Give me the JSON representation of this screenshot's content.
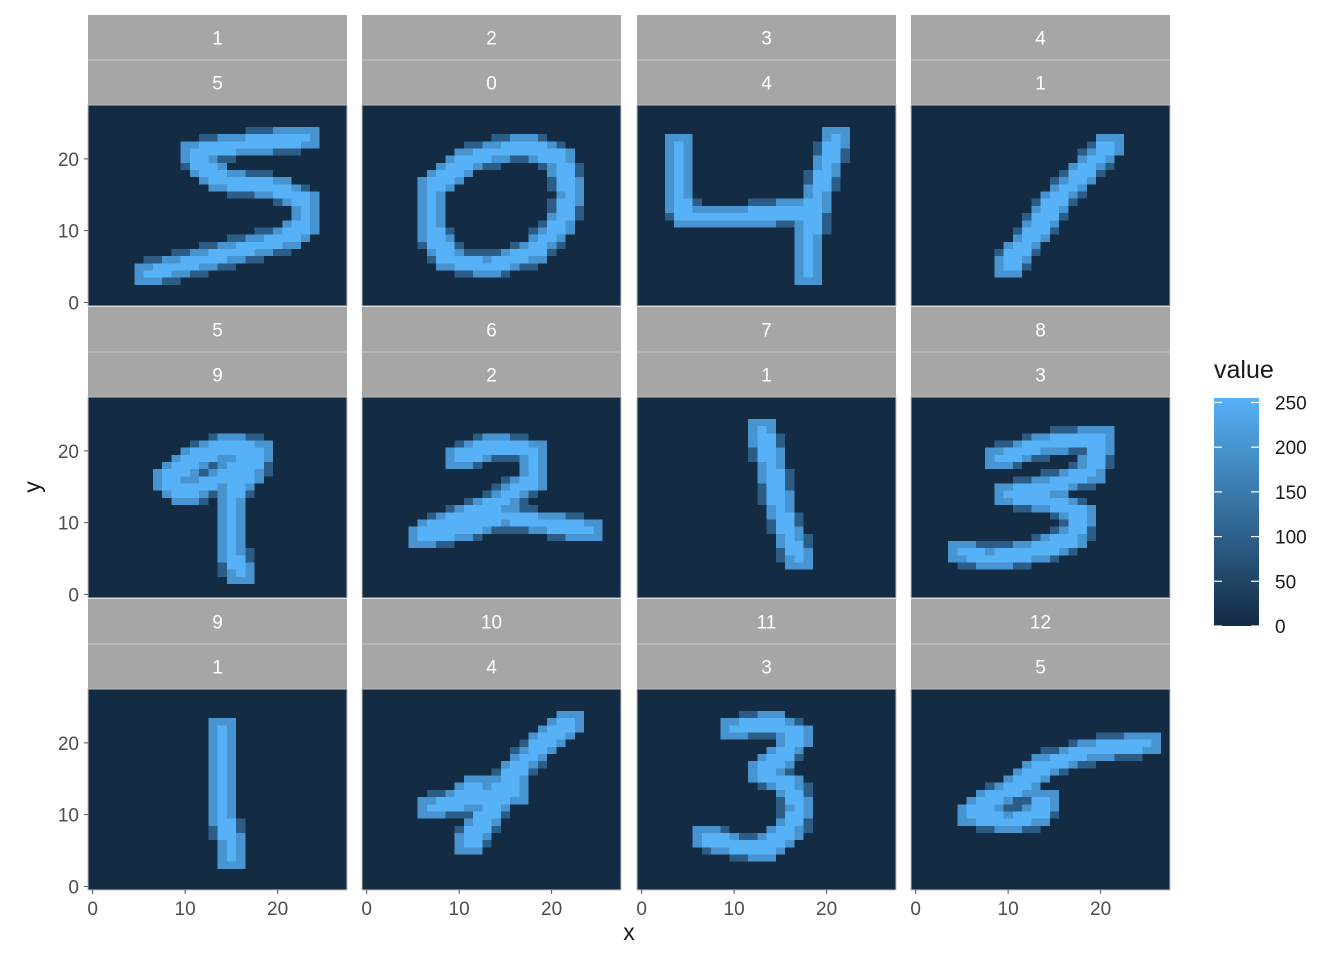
{
  "chart_data": {
    "type": "heatmap",
    "title": "",
    "xlabel": "x",
    "ylabel": "y",
    "x_ticks": [
      0,
      10,
      20
    ],
    "y_ticks": [
      0,
      10,
      20
    ],
    "xlim": [
      -0.5,
      27.5
    ],
    "ylim": [
      -0.5,
      27.5
    ],
    "grid": true,
    "legend": {
      "title": "value",
      "position": "right",
      "ticks": [
        0,
        50,
        100,
        150,
        200,
        250
      ],
      "range": [
        0,
        255
      ],
      "low_color": "#132B43",
      "high_color": "#56B1F7"
    },
    "facets": [
      {
        "index": "1",
        "label": "5",
        "strokes": [
          [
            [
              6,
              4
            ],
            [
              15,
              7
            ],
            [
              21,
              9
            ],
            [
              23,
              11
            ],
            [
              23,
              14
            ],
            [
              20,
              16
            ],
            [
              14,
              17
            ],
            [
              12,
              19
            ],
            [
              11,
              21
            ],
            [
              16,
              22
            ],
            [
              23,
              23
            ]
          ]
        ]
      },
      {
        "index": "2",
        "label": "0",
        "strokes": [
          [
            [
              17,
              22
            ],
            [
              11,
              20
            ],
            [
              7,
              16
            ],
            [
              7,
              10
            ],
            [
              9,
              6
            ],
            [
              13,
              5
            ],
            [
              18,
              7
            ],
            [
              21,
              11
            ],
            [
              22,
              15
            ],
            [
              21,
              20
            ],
            [
              17,
              22
            ]
          ]
        ]
      },
      {
        "index": "3",
        "label": "4",
        "strokes": [
          [
            [
              4,
              22
            ],
            [
              4,
              14
            ],
            [
              5,
              12
            ],
            [
              11,
              12
            ],
            [
              18,
              13
            ]
          ],
          [
            [
              21,
              23
            ],
            [
              19,
              15
            ],
            [
              18,
              9
            ],
            [
              18,
              4
            ]
          ]
        ]
      },
      {
        "index": "4",
        "label": "1",
        "strokes": [
          [
            [
              21,
              22
            ],
            [
              18,
              18
            ],
            [
              15,
              14
            ],
            [
              13,
              10
            ],
            [
              11,
              7
            ],
            [
              10,
              5
            ]
          ]
        ]
      },
      {
        "index": "5",
        "label": "9",
        "strokes": [
          [
            [
              17,
              19
            ],
            [
              15,
              17
            ],
            [
              10,
              14
            ],
            [
              8,
              16
            ],
            [
              11,
              19
            ],
            [
              15,
              21
            ],
            [
              18,
              20
            ],
            [
              17,
              17
            ],
            [
              15,
              14
            ],
            [
              15,
              10
            ],
            [
              15,
              6
            ],
            [
              16,
              3
            ]
          ]
        ]
      },
      {
        "index": "6",
        "label": "2",
        "strokes": [
          [
            [
              10,
              19
            ],
            [
              14,
              21
            ],
            [
              18,
              20
            ],
            [
              18,
              16
            ],
            [
              13,
              12
            ],
            [
              7,
              9
            ],
            [
              6,
              8
            ],
            [
              10,
              9
            ],
            [
              15,
              11
            ],
            [
              19,
              10
            ],
            [
              24,
              9
            ]
          ]
        ]
      },
      {
        "index": "7",
        "label": "1",
        "strokes": [
          [
            [
              13,
              23
            ],
            [
              14,
              18
            ],
            [
              15,
              12
            ],
            [
              16,
              8
            ],
            [
              17,
              5
            ]
          ]
        ]
      },
      {
        "index": "8",
        "label": "3",
        "strokes": [
          [
            [
              9,
              19
            ],
            [
              14,
              21
            ],
            [
              20,
              22
            ],
            [
              19,
              17
            ],
            [
              14,
              15
            ],
            [
              10,
              14
            ],
            [
              15,
              13
            ],
            [
              18,
              11
            ],
            [
              17,
              8
            ],
            [
              13,
              6
            ],
            [
              8,
              5
            ],
            [
              5,
              6
            ]
          ]
        ]
      },
      {
        "index": "9",
        "label": "1",
        "strokes": [
          [
            [
              14,
              22
            ],
            [
              14,
              18
            ],
            [
              14,
              14
            ],
            [
              14,
              10
            ],
            [
              15,
              6
            ],
            [
              15,
              4
            ]
          ]
        ]
      },
      {
        "index": "10",
        "label": "4",
        "strokes": [
          [
            [
              12,
              14
            ],
            [
              10,
              12
            ],
            [
              7,
              11
            ],
            [
              11,
              12
            ],
            [
              16,
              13
            ]
          ],
          [
            [
              22,
              23
            ],
            [
              19,
              20
            ],
            [
              16,
              16
            ],
            [
              14,
              12
            ],
            [
              12,
              8
            ],
            [
              11,
              6
            ]
          ]
        ]
      },
      {
        "index": "11",
        "label": "3",
        "strokes": [
          [
            [
              10,
              22
            ],
            [
              14,
              23
            ],
            [
              17,
              21
            ],
            [
              15,
              18
            ],
            [
              13,
              16
            ],
            [
              16,
              14
            ],
            [
              17,
              11
            ],
            [
              16,
              8
            ],
            [
              13,
              5
            ],
            [
              9,
              6
            ],
            [
              7,
              7
            ]
          ]
        ]
      },
      {
        "index": "12",
        "label": "5",
        "strokes": [
          [
            [
              25,
              20
            ],
            [
              19,
              19
            ],
            [
              14,
              17
            ],
            [
              11,
              14
            ],
            [
              8,
              12
            ],
            [
              6,
              10
            ],
            [
              10,
              9
            ],
            [
              13,
              10
            ],
            [
              14,
              12
            ]
          ]
        ]
      }
    ]
  }
}
